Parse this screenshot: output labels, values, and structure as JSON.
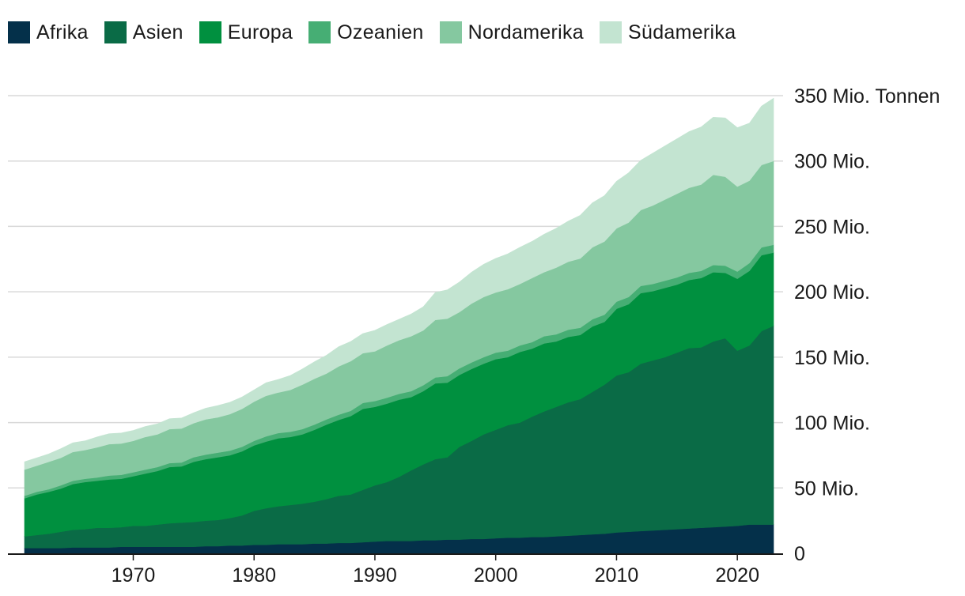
{
  "chart_data": {
    "type": "area",
    "stacked": true,
    "title": "",
    "xlabel": "",
    "ylabel": "Mio. Tonnen",
    "x": [
      1961,
      1962,
      1963,
      1964,
      1965,
      1966,
      1967,
      1968,
      1969,
      1970,
      1971,
      1972,
      1973,
      1974,
      1975,
      1976,
      1977,
      1978,
      1979,
      1980,
      1981,
      1982,
      1983,
      1984,
      1985,
      1986,
      1987,
      1988,
      1989,
      1990,
      1991,
      1992,
      1993,
      1994,
      1995,
      1996,
      1997,
      1998,
      1999,
      2000,
      2001,
      2002,
      2003,
      2004,
      2005,
      2006,
      2007,
      2008,
      2009,
      2010,
      2011,
      2012,
      2013,
      2014,
      2015,
      2016,
      2017,
      2018,
      2019,
      2020,
      2021,
      2022,
      2023
    ],
    "xlim": [
      1961,
      2023
    ],
    "ylim": [
      0,
      365
    ],
    "x_ticks": [
      {
        "value": 1970,
        "label": "1970"
      },
      {
        "value": 1980,
        "label": "1980"
      },
      {
        "value": 1990,
        "label": "1990"
      },
      {
        "value": 2000,
        "label": "2000"
      },
      {
        "value": 2010,
        "label": "2010"
      },
      {
        "value": 2020,
        "label": "2020"
      }
    ],
    "y_ticks": [
      {
        "value": 0,
        "label": "0"
      },
      {
        "value": 50,
        "label": "50 Mio."
      },
      {
        "value": 100,
        "label": "100 Mio."
      },
      {
        "value": 150,
        "label": "150 Mio."
      },
      {
        "value": 200,
        "label": "200 Mio."
      },
      {
        "value": 250,
        "label": "250 Mio."
      },
      {
        "value": 300,
        "label": "300 Mio."
      },
      {
        "value": 350,
        "label": "350 Mio. Tonnen"
      }
    ],
    "series": [
      {
        "name": "Afrika",
        "color": "#04304a",
        "values": [
          4,
          4,
          4,
          4,
          4.5,
          4.5,
          4.5,
          4.5,
          5,
          5,
          5,
          5,
          5,
          5,
          5,
          5.5,
          5.5,
          6,
          6,
          6.5,
          6.5,
          7,
          7,
          7,
          7.5,
          7.5,
          8,
          8,
          8.5,
          9,
          9.5,
          9.5,
          9.5,
          10,
          10,
          10.5,
          10.5,
          11,
          11,
          11.5,
          12,
          12,
          12.5,
          12.5,
          13,
          13.5,
          14,
          14.5,
          15,
          16,
          16.5,
          17,
          17.5,
          18,
          18.5,
          19,
          19.5,
          20,
          20.5,
          21,
          22,
          22,
          22
        ]
      },
      {
        "name": "Asien",
        "color": "#0a6b46",
        "values": [
          9,
          10,
          11,
          12.5,
          13.5,
          14,
          15,
          15,
          15,
          16,
          16,
          17,
          18,
          18.5,
          19,
          19.5,
          20,
          21,
          23,
          26,
          28,
          29,
          30,
          31,
          32,
          34,
          36,
          37,
          40,
          43,
          45,
          49,
          54,
          58,
          62,
          63,
          71,
          75,
          80,
          83,
          86,
          88,
          92,
          96,
          99,
          102,
          104,
          109,
          114,
          120,
          122,
          128,
          130,
          132,
          135,
          138,
          138,
          142,
          144,
          134,
          137,
          148,
          152
        ]
      },
      {
        "name": "Europa",
        "color": "#00903f",
        "values": [
          29,
          31,
          32,
          33,
          35,
          36,
          36,
          37,
          37,
          38,
          40,
          41,
          43,
          43,
          46,
          47,
          48,
          48,
          49,
          50,
          51,
          52,
          52,
          53,
          55,
          57,
          58,
          60,
          62,
          60,
          60,
          59,
          56,
          56,
          58,
          57,
          55,
          55,
          54,
          54,
          52,
          54,
          52,
          52,
          50,
          50,
          49,
          50,
          48,
          51,
          52,
          54,
          53,
          53,
          52,
          52,
          53,
          53,
          50,
          55,
          57,
          58,
          56
        ]
      },
      {
        "name": "Ozeanien",
        "color": "#46ae74",
        "values": [
          2,
          2,
          2,
          2.5,
          2.5,
          2.5,
          2.5,
          3,
          3,
          3,
          3,
          3,
          3,
          3,
          3.5,
          3.5,
          3.5,
          3.5,
          3.5,
          3.5,
          4,
          4,
          4,
          4,
          4,
          4,
          4,
          4,
          4.5,
          4.5,
          4.5,
          4.5,
          4.5,
          4.5,
          4.5,
          5,
          5,
          5,
          5,
          5,
          5,
          5,
          5,
          5.5,
          5.5,
          5.5,
          5.5,
          5.5,
          5.5,
          5.5,
          5.5,
          5.5,
          5.5,
          5.5,
          5.5,
          5.5,
          5.5,
          5.5,
          5.5,
          5.5,
          6,
          6,
          6
        ]
      },
      {
        "name": "Nordamerika",
        "color": "#85c8a0",
        "values": [
          20,
          20,
          21,
          21,
          22,
          22,
          23,
          24,
          24,
          24,
          25,
          25,
          26,
          26,
          26,
          27,
          27,
          28,
          29,
          30,
          31,
          31,
          32,
          34,
          35,
          35,
          37,
          38,
          38,
          38,
          40,
          41,
          42,
          42,
          44,
          44,
          43,
          45,
          46,
          46,
          47,
          47,
          49,
          49,
          51,
          52,
          53,
          55,
          56,
          56,
          57,
          58,
          60,
          62,
          64,
          65,
          66,
          69,
          68,
          65,
          63,
          63,
          64
        ]
      },
      {
        "name": "Südamerika",
        "color": "#c3e4d1",
        "values": [
          6,
          6,
          6,
          7,
          7,
          7,
          8,
          8,
          8,
          8,
          8,
          8,
          8,
          8,
          8,
          8.5,
          9,
          9,
          9,
          9,
          10,
          10,
          11,
          12,
          13,
          14,
          15,
          15,
          15,
          16,
          16,
          16,
          17,
          18,
          21,
          22,
          23,
          24,
          25,
          26,
          27,
          28,
          28,
          29,
          30,
          31,
          33,
          34,
          35,
          36,
          38,
          38,
          40,
          41,
          42,
          43,
          44,
          44,
          45,
          45,
          44,
          45,
          48
        ]
      }
    ]
  }
}
